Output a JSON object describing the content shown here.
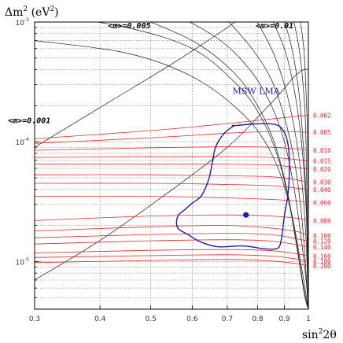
{
  "chart_data": {
    "type": "line",
    "ylabel_main": "Δm",
    "ylabel_sup": "2",
    "ylabel_unit": "(eV",
    "ylabel_unit_sup": "2",
    "ylabel_close": ")",
    "xlabel_main": "sin",
    "xlabel_sup": "2",
    "xlabel_tail": "2θ",
    "x_scale": "log",
    "y_scale": "log",
    "xlim": [
      0.3,
      1.0
    ],
    "ylim": [
      4e-06,
      0.001
    ],
    "grid": true,
    "x_ticks": [
      {
        "value": 0.3,
        "label": "0.3"
      },
      {
        "value": 0.4,
        "label": "0.4"
      },
      {
        "value": 0.5,
        "label": "0.5"
      },
      {
        "value": 0.6,
        "label": "0.6"
      },
      {
        "value": 0.7,
        "label": "0.7"
      },
      {
        "value": 0.8,
        "label": "0.8"
      },
      {
        "value": 0.9,
        "label": "0.9"
      },
      {
        "value": 1.0,
        "label": "1"
      }
    ],
    "y_ticks": [
      {
        "value": 0.001,
        "mantissa": "10",
        "exp": "-3"
      },
      {
        "value": 0.0001,
        "mantissa": "10",
        "exp": "-4"
      },
      {
        "value": 1e-05,
        "mantissa": "10",
        "exp": "-5"
      }
    ],
    "mass_annotations": [
      {
        "text": "<m>=0.005",
        "x": 0.455,
        "y": 0.00097
      },
      {
        "text": "<m>=0.01",
        "x": 0.862,
        "y": 0.00097
      },
      {
        "text": "<m>=0.001",
        "x": 0.293,
        "y": 0.000157
      }
    ],
    "red_labels": [
      "0.002",
      "0.005",
      "0.010",
      "0.015",
      "0.020",
      "0.030",
      "0.040",
      "0.060",
      "0.080",
      "0.100",
      "0.120",
      "0.140",
      "0.160",
      "0.180",
      "0.200"
    ],
    "red_curves": [
      {
        "x": [
          0.3,
          0.5,
          0.7,
          0.85,
          0.95,
          1.0
        ],
        "y": [
          0.000106,
          0.000124,
          0.000142,
          0.000155,
          0.000163,
          0.000167
        ]
      },
      {
        "x": [
          0.3,
          0.5,
          0.7,
          0.85,
          0.95,
          1.0
        ],
        "y": [
          9.7e-05,
          0.000108,
          0.000118,
          0.000122,
          0.000121,
          0.00012
        ]
      },
      {
        "x": [
          0.3,
          0.5,
          0.7,
          0.85,
          0.95,
          1.0
        ],
        "y": [
          8.5e-05,
          8.9e-05,
          9.1e-05,
          9e-05,
          8.7e-05,
          8.5e-05
        ]
      },
      {
        "x": [
          0.3,
          0.5,
          0.7,
          0.85,
          0.95,
          1.0
        ],
        "y": [
          7.4e-05,
          7.5e-05,
          7.5e-05,
          7.4e-05,
          7.1e-05,
          6.9e-05
        ]
      },
      {
        "x": [
          0.3,
          0.5,
          0.7,
          0.85,
          0.95,
          1.0
        ],
        "y": [
          6.5e-05,
          6.5e-05,
          6.5e-05,
          6.4e-05,
          6.1e-05,
          5.9e-05
        ]
      },
      {
        "x": [
          0.3,
          0.5,
          0.7,
          0.85,
          0.95,
          1.0
        ],
        "y": [
          5.3e-05,
          5.3e-05,
          5.2e-05,
          5.1e-05,
          4.8e-05,
          4.6e-05
        ]
      },
      {
        "x": [
          0.3,
          0.5,
          0.7,
          0.85,
          0.95,
          1.0
        ],
        "y": [
          4.5e-05,
          4.5e-05,
          4.4e-05,
          4.3e-05,
          4.1e-05,
          4e-05
        ]
      },
      {
        "x": [
          0.3,
          0.5,
          0.7,
          0.85,
          0.95,
          1.0
        ],
        "y": [
          3.5e-05,
          3.5e-05,
          3.4e-05,
          3.3e-05,
          3.2e-05,
          3.1e-05
        ]
      },
      {
        "x": [
          0.3,
          0.5,
          0.7,
          0.85,
          0.95,
          1.0
        ],
        "y": [
          2.2e-05,
          2.4e-05,
          2.45e-05,
          2.4e-05,
          2.3e-05,
          2.2e-05
        ]
      },
      {
        "x": [
          0.3,
          0.5,
          0.7,
          0.85,
          0.95,
          1.0
        ],
        "y": [
          1.8e-05,
          1.95e-05,
          2e-05,
          1.9e-05,
          1.78e-05,
          1.65e-05
        ]
      },
      {
        "x": [
          0.3,
          0.5,
          0.7,
          0.85,
          0.95,
          1.0
        ],
        "y": [
          1.58e-05,
          1.68e-05,
          1.72e-05,
          1.68e-05,
          1.55e-05,
          1.48e-05
        ]
      },
      {
        "x": [
          0.3,
          0.5,
          0.7,
          0.85,
          0.95,
          1.0
        ],
        "y": [
          1.4e-05,
          1.49e-05,
          1.52e-05,
          1.48e-05,
          1.38e-05,
          1.32e-05
        ]
      },
      {
        "x": [
          0.3,
          0.5,
          0.7,
          0.85,
          0.95,
          1.0
        ],
        "y": [
          1.18e-05,
          1.24e-05,
          1.26e-05,
          1.23e-05,
          1.16e-05,
          1.11e-05
        ]
      },
      {
        "x": [
          0.3,
          0.5,
          0.7,
          0.85,
          0.95,
          1.0
        ],
        "y": [
          1.08e-05,
          1.12e-05,
          1.14e-05,
          1.11e-05,
          1.05e-05,
          1.01e-05
        ]
      },
      {
        "x": [
          0.3,
          0.5,
          0.7,
          0.85,
          0.95,
          1.0
        ],
        "y": [
          9.8e-06,
          1.02e-05,
          1.04e-05,
          1.01e-05,
          9.6e-06,
          9.2e-06
        ]
      }
    ],
    "black_curves": [
      {
        "x": [
          0.3,
          0.42,
          0.55,
          0.7,
          0.82,
          0.9,
          0.95,
          0.98,
          1.0
        ],
        "y": [
          9e-05,
          0.00022,
          0.00045,
          0.0009,
          0.0015,
          0.0018,
          0.0018,
          0.0018,
          0.0018
        ]
      },
      {
        "x": [
          0.3,
          0.4,
          0.55,
          0.7,
          0.8,
          0.88,
          0.94,
          0.98,
          1.0
        ],
        "y": [
          7e-06,
          1.5e-05,
          4e-05,
          9e-05,
          0.00016,
          0.00025,
          0.00035,
          0.0004,
          0.0004
        ]
      },
      {
        "x": [
          0.3,
          0.45,
          0.6,
          0.75,
          0.85,
          0.92,
          0.97,
          1.0
        ],
        "y": [
          0.0007,
          0.00055,
          0.00035,
          0.00017,
          8e-05,
          3e-05,
          9e-06,
          4e-06
        ]
      },
      {
        "x": [
          0.3,
          0.45,
          0.6,
          0.72,
          0.8,
          0.87,
          0.92,
          0.96,
          0.985,
          1.0
        ],
        "y": [
          0.0012,
          0.0009,
          0.0006,
          0.00032,
          0.00018,
          8e-05,
          3e-05,
          1e-05,
          5e-06,
          4e-06
        ]
      },
      {
        "x": [
          0.45,
          0.6,
          0.72,
          0.8,
          0.86,
          0.91,
          0.95,
          0.98,
          1.0
        ],
        "y": [
          0.0012,
          0.0007,
          0.00038,
          0.0002,
          0.0001,
          4e-05,
          1.4e-05,
          6e-06,
          4e-06
        ]
      },
      {
        "x": [
          0.55,
          0.68,
          0.78,
          0.85,
          0.9,
          0.94,
          0.97,
          0.99,
          1.0
        ],
        "y": [
          0.0012,
          0.0007,
          0.00038,
          0.0002,
          0.0001,
          4e-05,
          1.5e-05,
          7e-06,
          4e-06
        ]
      },
      {
        "x": [
          0.68,
          0.78,
          0.85,
          0.9,
          0.94,
          0.97,
          0.99,
          1.0
        ],
        "y": [
          0.0012,
          0.0006,
          0.00033,
          0.00016,
          7e-05,
          2.5e-05,
          8e-06,
          4e-06
        ]
      },
      {
        "x": [
          0.78,
          0.85,
          0.9,
          0.94,
          0.97,
          0.99,
          1.0
        ],
        "y": [
          0.0012,
          0.0006,
          0.0003,
          0.00013,
          5e-05,
          1.5e-05,
          4e-06
        ]
      },
      {
        "x": [
          0.84,
          0.9,
          0.94,
          0.97,
          0.99,
          1.0
        ],
        "y": [
          0.0012,
          0.0006,
          0.00027,
          0.0001,
          2.8e-05,
          4e-06
        ]
      },
      {
        "x": [
          0.89,
          0.93,
          0.96,
          0.98,
          0.995,
          1.0
        ],
        "y": [
          0.0012,
          0.0006,
          0.00025,
          8e-05,
          2e-05,
          4e-06
        ]
      },
      {
        "x": [
          0.93,
          0.96,
          0.98,
          0.99,
          1.0
        ],
        "y": [
          0.0012,
          0.0006,
          0.00025,
          9e-05,
          4e-06
        ]
      },
      {
        "x": [
          0.96,
          0.98,
          0.99,
          0.997,
          1.0
        ],
        "y": [
          0.0012,
          0.0006,
          0.00025,
          8e-05,
          4e-06
        ]
      }
    ],
    "region": {
      "label": "MSW LMA",
      "label_x": 0.795,
      "label_y": 0.00025,
      "color": "#1f1f9e",
      "x": [
        0.72,
        0.79,
        0.86,
        0.895,
        0.915,
        0.92,
        0.915,
        0.9,
        0.89,
        0.88,
        0.86,
        0.82,
        0.75,
        0.67,
        0.62,
        0.59,
        0.565,
        0.56,
        0.565,
        0.58,
        0.6,
        0.625,
        0.645,
        0.655,
        0.665,
        0.69,
        0.72
      ],
      "y": [
        0.000136,
        0.000141,
        0.00014,
        0.000125,
        9.35e-05,
        6.16e-05,
        3.75e-05,
        2.42e-05,
        1.63e-05,
        1.33e-05,
        1.27e-05,
        1.28e-05,
        1.35e-05,
        1.33e-05,
        1.47e-05,
        1.67e-05,
        1.87e-05,
        2.13e-05,
        2.45e-05,
        2.7e-05,
        3.07e-05,
        3.55e-05,
        4.85e-05,
        6.58e-05,
        9.04e-05,
        0.000117,
        0.000136
      ]
    },
    "best_fit": {
      "x": 0.76,
      "y": 2.45e-05
    },
    "colors": {
      "red": "#e8262b",
      "black": "#1a1a1a",
      "blue": "#1f1f9e",
      "grid": "#777777"
    }
  }
}
